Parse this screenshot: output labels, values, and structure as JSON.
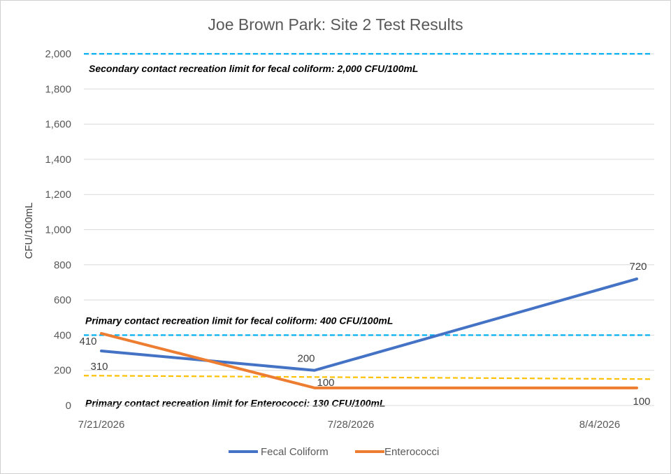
{
  "chart_data": {
    "type": "line",
    "title": "Joe Brown Park: Site 2 Test Results",
    "xlabel": "",
    "ylabel": "CFU/100mL",
    "ylim": [
      0,
      2000
    ],
    "yticks": [
      0,
      200,
      400,
      600,
      800,
      1000,
      1200,
      1400,
      1600,
      1800,
      2000
    ],
    "ytick_labels": [
      "0",
      "200",
      "400",
      "600",
      "800",
      "1,000",
      "1,200",
      "1,400",
      "1,600",
      "1,800",
      "2,000"
    ],
    "x_tick_labels": [
      "7/21/2026",
      "7/28/2026",
      "8/4/2026"
    ],
    "grid": true,
    "legend_position": "bottom",
    "series": [
      {
        "name": "Fecal Coliform",
        "color": "#4472C4",
        "values": [
          310,
          200,
          720
        ],
        "labels": [
          "310",
          "200",
          "720"
        ]
      },
      {
        "name": "Enterococci",
        "color": "#ED7D31",
        "values": [
          410,
          100,
          100
        ],
        "labels": [
          "410",
          "100",
          "100"
        ]
      }
    ],
    "reference_lines": [
      {
        "value": 2000,
        "color": "#00B0F0",
        "label": "Secondary contact recreation limit for fecal coliform: 2,000 CFU/100mL"
      },
      {
        "value": 400,
        "color": "#00B0F0",
        "label": "Primary contact recreation limit for fecal coliform: 400 CFU/100mL"
      },
      {
        "value": 130,
        "color": "#FFC000",
        "label": "Primary contact recreation limit for Enterococci: 130 CFU/100mL"
      }
    ]
  }
}
